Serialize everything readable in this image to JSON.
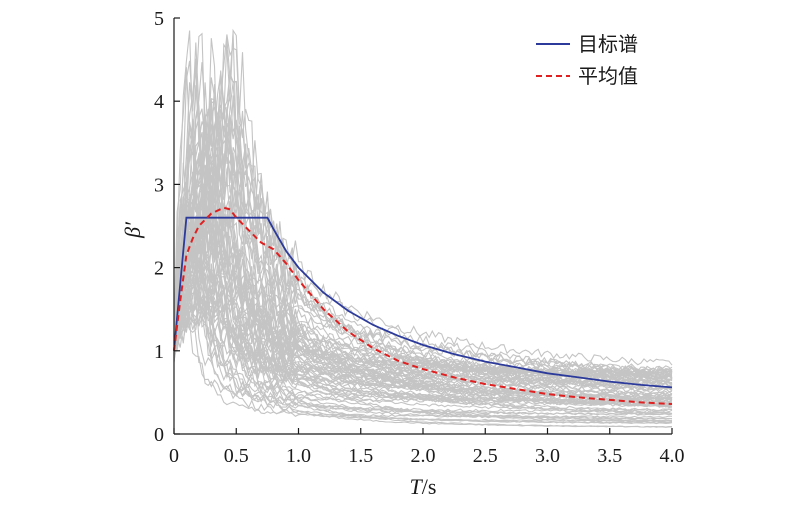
{
  "chart_data": {
    "type": "line",
    "xlabel": "T/s",
    "ylabel": "β′",
    "xlim": [
      0,
      4.0
    ],
    "ylim": [
      0,
      5
    ],
    "x_ticks": [
      0,
      0.5,
      1.0,
      1.5,
      2.0,
      2.5,
      3.0,
      3.5,
      4.0
    ],
    "x_tick_labels": [
      "0",
      "0.5",
      "1.0",
      "1.5",
      "2.0",
      "2.5",
      "3.0",
      "3.5",
      "4.0"
    ],
    "y_ticks": [
      0,
      1,
      2,
      3,
      4,
      5
    ],
    "y_tick_labels": [
      "0",
      "1",
      "2",
      "3",
      "4",
      "5"
    ],
    "legend": {
      "position": "top-right"
    },
    "grid": false,
    "series": [
      {
        "name": "目标谱",
        "color": "#2b3a9b",
        "style": "solid",
        "x": [
          0,
          0.1,
          0.75,
          0.8,
          0.9,
          1.0,
          1.2,
          1.4,
          1.6,
          1.8,
          2.0,
          2.25,
          2.5,
          2.75,
          3.0,
          3.25,
          3.5,
          3.75,
          4.0
        ],
        "y": [
          1.0,
          2.6,
          2.6,
          2.46,
          2.2,
          2.0,
          1.7,
          1.48,
          1.31,
          1.18,
          1.07,
          0.96,
          0.87,
          0.8,
          0.73,
          0.68,
          0.63,
          0.59,
          0.56
        ]
      },
      {
        "name": "平均值",
        "color": "#e02020",
        "style": "dashed",
        "x": [
          0,
          0.05,
          0.1,
          0.15,
          0.2,
          0.3,
          0.4,
          0.45,
          0.5,
          0.6,
          0.7,
          0.8,
          0.9,
          1.0,
          1.2,
          1.4,
          1.6,
          1.8,
          2.0,
          2.25,
          2.5,
          2.75,
          3.0,
          3.25,
          3.5,
          3.75,
          4.0
        ],
        "y": [
          1.0,
          1.6,
          2.15,
          2.35,
          2.5,
          2.65,
          2.72,
          2.7,
          2.6,
          2.45,
          2.3,
          2.22,
          2.05,
          1.85,
          1.5,
          1.23,
          1.03,
          0.88,
          0.78,
          0.68,
          0.6,
          0.54,
          0.48,
          0.44,
          0.41,
          0.38,
          0.36
        ]
      }
    ],
    "background_curves": {
      "color": "#c4c4c4",
      "count": 80,
      "description_values": "individual record spectra, peaks between 1.4 and 4.8 near T=0.1-0.5 s, decaying to 0.05-0.75 at T=4.0 s"
    }
  }
}
